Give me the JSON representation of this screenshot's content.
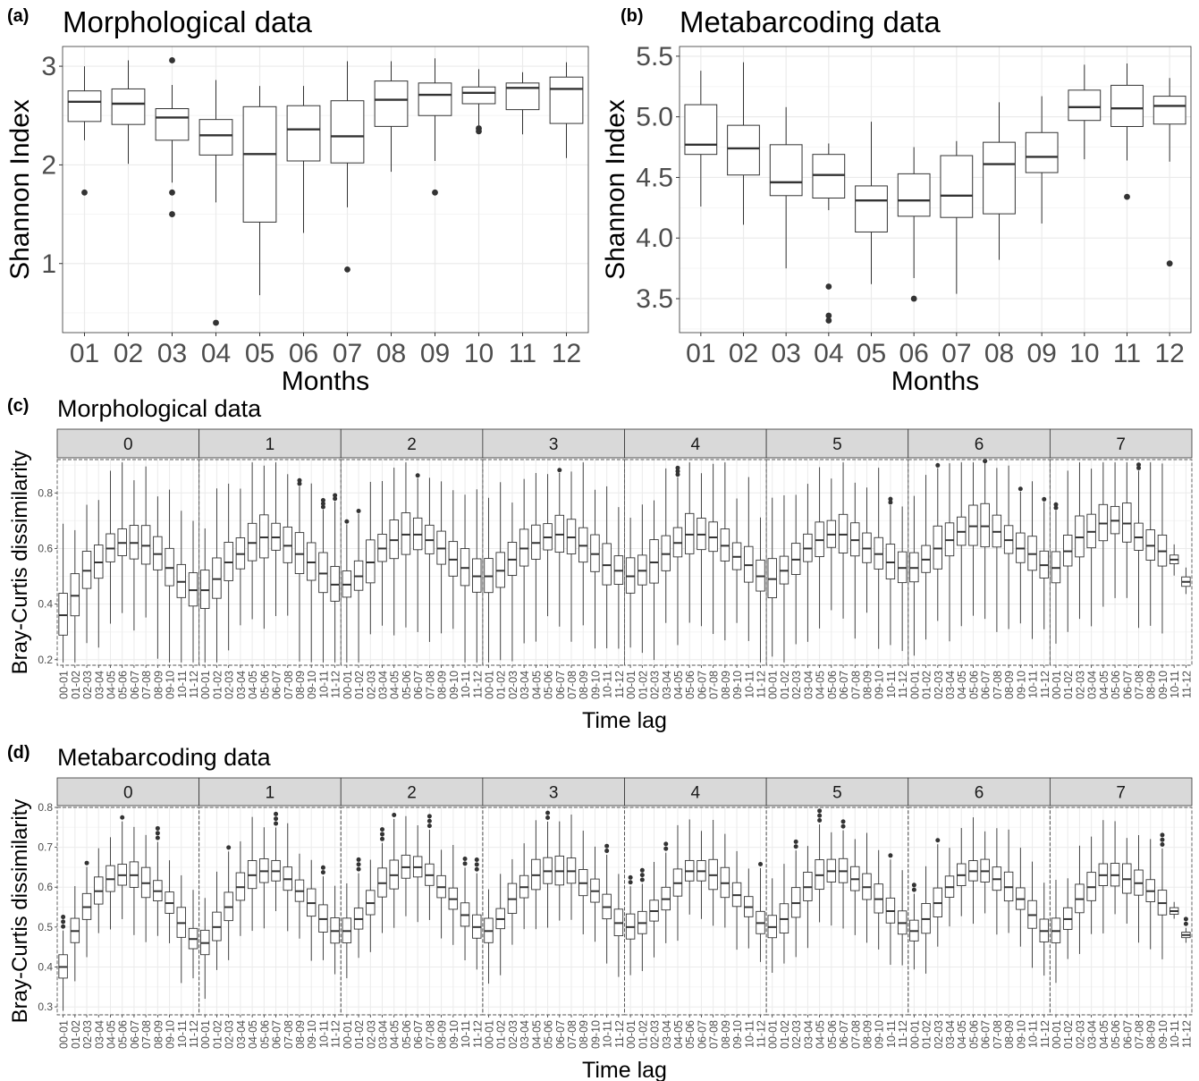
{
  "chart_data": [
    {
      "panel": "(a)",
      "type": "boxplot",
      "title": "Morphological data",
      "xlabel": "Months",
      "ylabel": "Shannon Index",
      "ylim": [
        0.3,
        3.2
      ],
      "yticks": [
        1,
        2,
        3
      ],
      "categories": [
        "01",
        "02",
        "03",
        "04",
        "05",
        "06",
        "07",
        "08",
        "09",
        "10",
        "11",
        "12"
      ],
      "boxes": [
        {
          "min": 2.25,
          "q1": 2.44,
          "median": 2.64,
          "q3": 2.75,
          "max": 3.0,
          "outliers": [
            1.72
          ]
        },
        {
          "min": 2.01,
          "q1": 2.41,
          "median": 2.62,
          "q3": 2.77,
          "max": 3.06,
          "outliers": []
        },
        {
          "min": 1.82,
          "q1": 2.25,
          "median": 2.48,
          "q3": 2.57,
          "max": 2.81,
          "outliers": [
            3.06,
            1.72,
            1.5
          ]
        },
        {
          "min": 1.62,
          "q1": 2.1,
          "median": 2.3,
          "q3": 2.46,
          "max": 2.86,
          "outliers": [
            0.4
          ]
        },
        {
          "min": 0.68,
          "q1": 1.42,
          "median": 2.11,
          "q3": 2.59,
          "max": 2.8,
          "outliers": []
        },
        {
          "min": 1.31,
          "q1": 2.04,
          "median": 2.36,
          "q3": 2.6,
          "max": 2.8,
          "outliers": []
        },
        {
          "min": 1.57,
          "q1": 2.02,
          "median": 2.29,
          "q3": 2.65,
          "max": 3.05,
          "outliers": [
            0.94
          ]
        },
        {
          "min": 1.93,
          "q1": 2.39,
          "median": 2.66,
          "q3": 2.85,
          "max": 3.05,
          "outliers": []
        },
        {
          "min": 2.04,
          "q1": 2.5,
          "median": 2.71,
          "q3": 2.83,
          "max": 3.08,
          "outliers": [
            1.72
          ]
        },
        {
          "min": 2.4,
          "q1": 2.62,
          "median": 2.73,
          "q3": 2.79,
          "max": 2.97,
          "outliers": [
            2.37,
            2.34
          ]
        },
        {
          "min": 2.31,
          "q1": 2.56,
          "median": 2.78,
          "q3": 2.83,
          "max": 2.94,
          "outliers": []
        },
        {
          "min": 2.07,
          "q1": 2.42,
          "median": 2.77,
          "q3": 2.89,
          "max": 3.04,
          "outliers": []
        }
      ]
    },
    {
      "panel": "(b)",
      "type": "boxplot",
      "title": "Metabarcoding data",
      "xlabel": "Months",
      "ylabel": "Shannon Index",
      "ylim": [
        3.22,
        5.58
      ],
      "yticks": [
        "3.5",
        "4.0",
        "4.5",
        "5.0",
        "5.5"
      ],
      "categories": [
        "01",
        "02",
        "03",
        "04",
        "05",
        "06",
        "07",
        "08",
        "09",
        "10",
        "11",
        "12"
      ],
      "boxes": [
        {
          "min": 4.26,
          "q1": 4.69,
          "median": 4.77,
          "q3": 5.1,
          "max": 5.38,
          "outliers": []
        },
        {
          "min": 4.11,
          "q1": 4.52,
          "median": 4.74,
          "q3": 4.93,
          "max": 5.45,
          "outliers": []
        },
        {
          "min": 3.75,
          "q1": 4.35,
          "median": 4.46,
          "q3": 4.77,
          "max": 5.08,
          "outliers": []
        },
        {
          "min": 4.23,
          "q1": 4.33,
          "median": 4.52,
          "q3": 4.69,
          "max": 4.78,
          "outliers": [
            3.6,
            3.36,
            3.32
          ]
        },
        {
          "min": 3.62,
          "q1": 4.05,
          "median": 4.31,
          "q3": 4.43,
          "max": 4.96,
          "outliers": []
        },
        {
          "min": 3.67,
          "q1": 4.18,
          "median": 4.31,
          "q3": 4.53,
          "max": 4.75,
          "outliers": [
            3.5
          ]
        },
        {
          "min": 3.54,
          "q1": 4.17,
          "median": 4.35,
          "q3": 4.68,
          "max": 4.8,
          "outliers": []
        },
        {
          "min": 3.82,
          "q1": 4.2,
          "median": 4.61,
          "q3": 4.79,
          "max": 5.12,
          "outliers": []
        },
        {
          "min": 4.12,
          "q1": 4.54,
          "median": 4.67,
          "q3": 4.87,
          "max": 5.17,
          "outliers": []
        },
        {
          "min": 4.65,
          "q1": 4.97,
          "median": 5.08,
          "q3": 5.22,
          "max": 5.43,
          "outliers": []
        },
        {
          "min": 4.64,
          "q1": 4.92,
          "median": 5.07,
          "q3": 5.26,
          "max": 5.44,
          "outliers": [
            4.34
          ]
        },
        {
          "min": 4.63,
          "q1": 4.94,
          "median": 5.09,
          "q3": 5.17,
          "max": 5.32,
          "outliers": [
            3.79
          ]
        }
      ]
    },
    {
      "panel": "(c)",
      "type": "boxplot",
      "title": "Morphological data",
      "xlabel": "Time lag",
      "ylabel": "Bray-Curtis dissimilarity",
      "ylim": [
        0.18,
        0.92
      ],
      "yticks": [
        "0.2",
        "0.4",
        "0.6",
        "0.8"
      ],
      "facets": [
        "0",
        "1",
        "2",
        "3",
        "4",
        "5",
        "6",
        "7"
      ],
      "categories": [
        "00-01",
        "01-02",
        "02-03",
        "03-04",
        "04-05",
        "05-06",
        "06-07",
        "07-08",
        "08-09",
        "09-10",
        "10-11",
        "11-12"
      ],
      "medians": [
        [
          0.36,
          0.43,
          0.52,
          0.55,
          0.6,
          0.62,
          0.62,
          0.61,
          0.58,
          0.53,
          0.48,
          0.45
        ],
        [
          0.45,
          0.49,
          0.55,
          0.58,
          0.62,
          0.64,
          0.64,
          0.61,
          0.58,
          0.55,
          0.51,
          0.47
        ],
        [
          0.47,
          0.5,
          0.55,
          0.6,
          0.63,
          0.65,
          0.65,
          0.63,
          0.6,
          0.56,
          0.53,
          0.5
        ],
        [
          0.5,
          0.52,
          0.56,
          0.6,
          0.62,
          0.64,
          0.65,
          0.64,
          0.61,
          0.58,
          0.54,
          0.52
        ],
        [
          0.5,
          0.52,
          0.55,
          0.58,
          0.62,
          0.65,
          0.65,
          0.64,
          0.61,
          0.57,
          0.54,
          0.5
        ],
        [
          0.49,
          0.52,
          0.56,
          0.6,
          0.63,
          0.65,
          0.65,
          0.63,
          0.6,
          0.58,
          0.55,
          0.53
        ],
        [
          0.53,
          0.56,
          0.6,
          0.63,
          0.66,
          0.68,
          0.68,
          0.66,
          0.63,
          0.6,
          0.58,
          0.54
        ],
        [
          0.53,
          0.59,
          0.64,
          0.66,
          0.69,
          0.7,
          0.69,
          0.64,
          0.61,
          0.59,
          0.56,
          0.48
        ]
      ]
    },
    {
      "panel": "(d)",
      "type": "boxplot",
      "title": "Metabarcoding data",
      "xlabel": "Time lag",
      "ylabel": "Bray-Curtis dissimilarity",
      "ylim": [
        0.28,
        0.8
      ],
      "yticks": [
        "0.3",
        "0.4",
        "0.5",
        "0.6",
        "0.7",
        "0.8"
      ],
      "facets": [
        "0",
        "1",
        "2",
        "3",
        "4",
        "5",
        "6",
        "7"
      ],
      "categories": [
        "00-01",
        "01-02",
        "02-03",
        "03-04",
        "04-05",
        "05-06",
        "06-07",
        "07-08",
        "08-09",
        "09-10",
        "10-11",
        "11-12"
      ],
      "medians": [
        [
          0.4,
          0.49,
          0.55,
          0.59,
          0.62,
          0.63,
          0.63,
          0.61,
          0.59,
          0.56,
          0.51,
          0.47
        ],
        [
          0.46,
          0.5,
          0.55,
          0.6,
          0.63,
          0.64,
          0.64,
          0.62,
          0.59,
          0.56,
          0.52,
          0.49
        ],
        [
          0.49,
          0.52,
          0.56,
          0.61,
          0.63,
          0.65,
          0.65,
          0.63,
          0.6,
          0.57,
          0.53,
          0.5
        ],
        [
          0.49,
          0.52,
          0.57,
          0.6,
          0.63,
          0.64,
          0.64,
          0.64,
          0.61,
          0.59,
          0.55,
          0.51
        ],
        [
          0.5,
          0.51,
          0.54,
          0.57,
          0.61,
          0.64,
          0.64,
          0.63,
          0.61,
          0.58,
          0.55,
          0.51
        ],
        [
          0.5,
          0.52,
          0.56,
          0.6,
          0.63,
          0.64,
          0.64,
          0.62,
          0.6,
          0.57,
          0.54,
          0.51
        ],
        [
          0.49,
          0.52,
          0.56,
          0.6,
          0.63,
          0.64,
          0.64,
          0.62,
          0.6,
          0.57,
          0.53,
          0.49
        ],
        [
          0.49,
          0.52,
          0.57,
          0.6,
          0.63,
          0.63,
          0.62,
          0.61,
          0.59,
          0.56,
          0.54,
          0.48
        ]
      ]
    }
  ]
}
